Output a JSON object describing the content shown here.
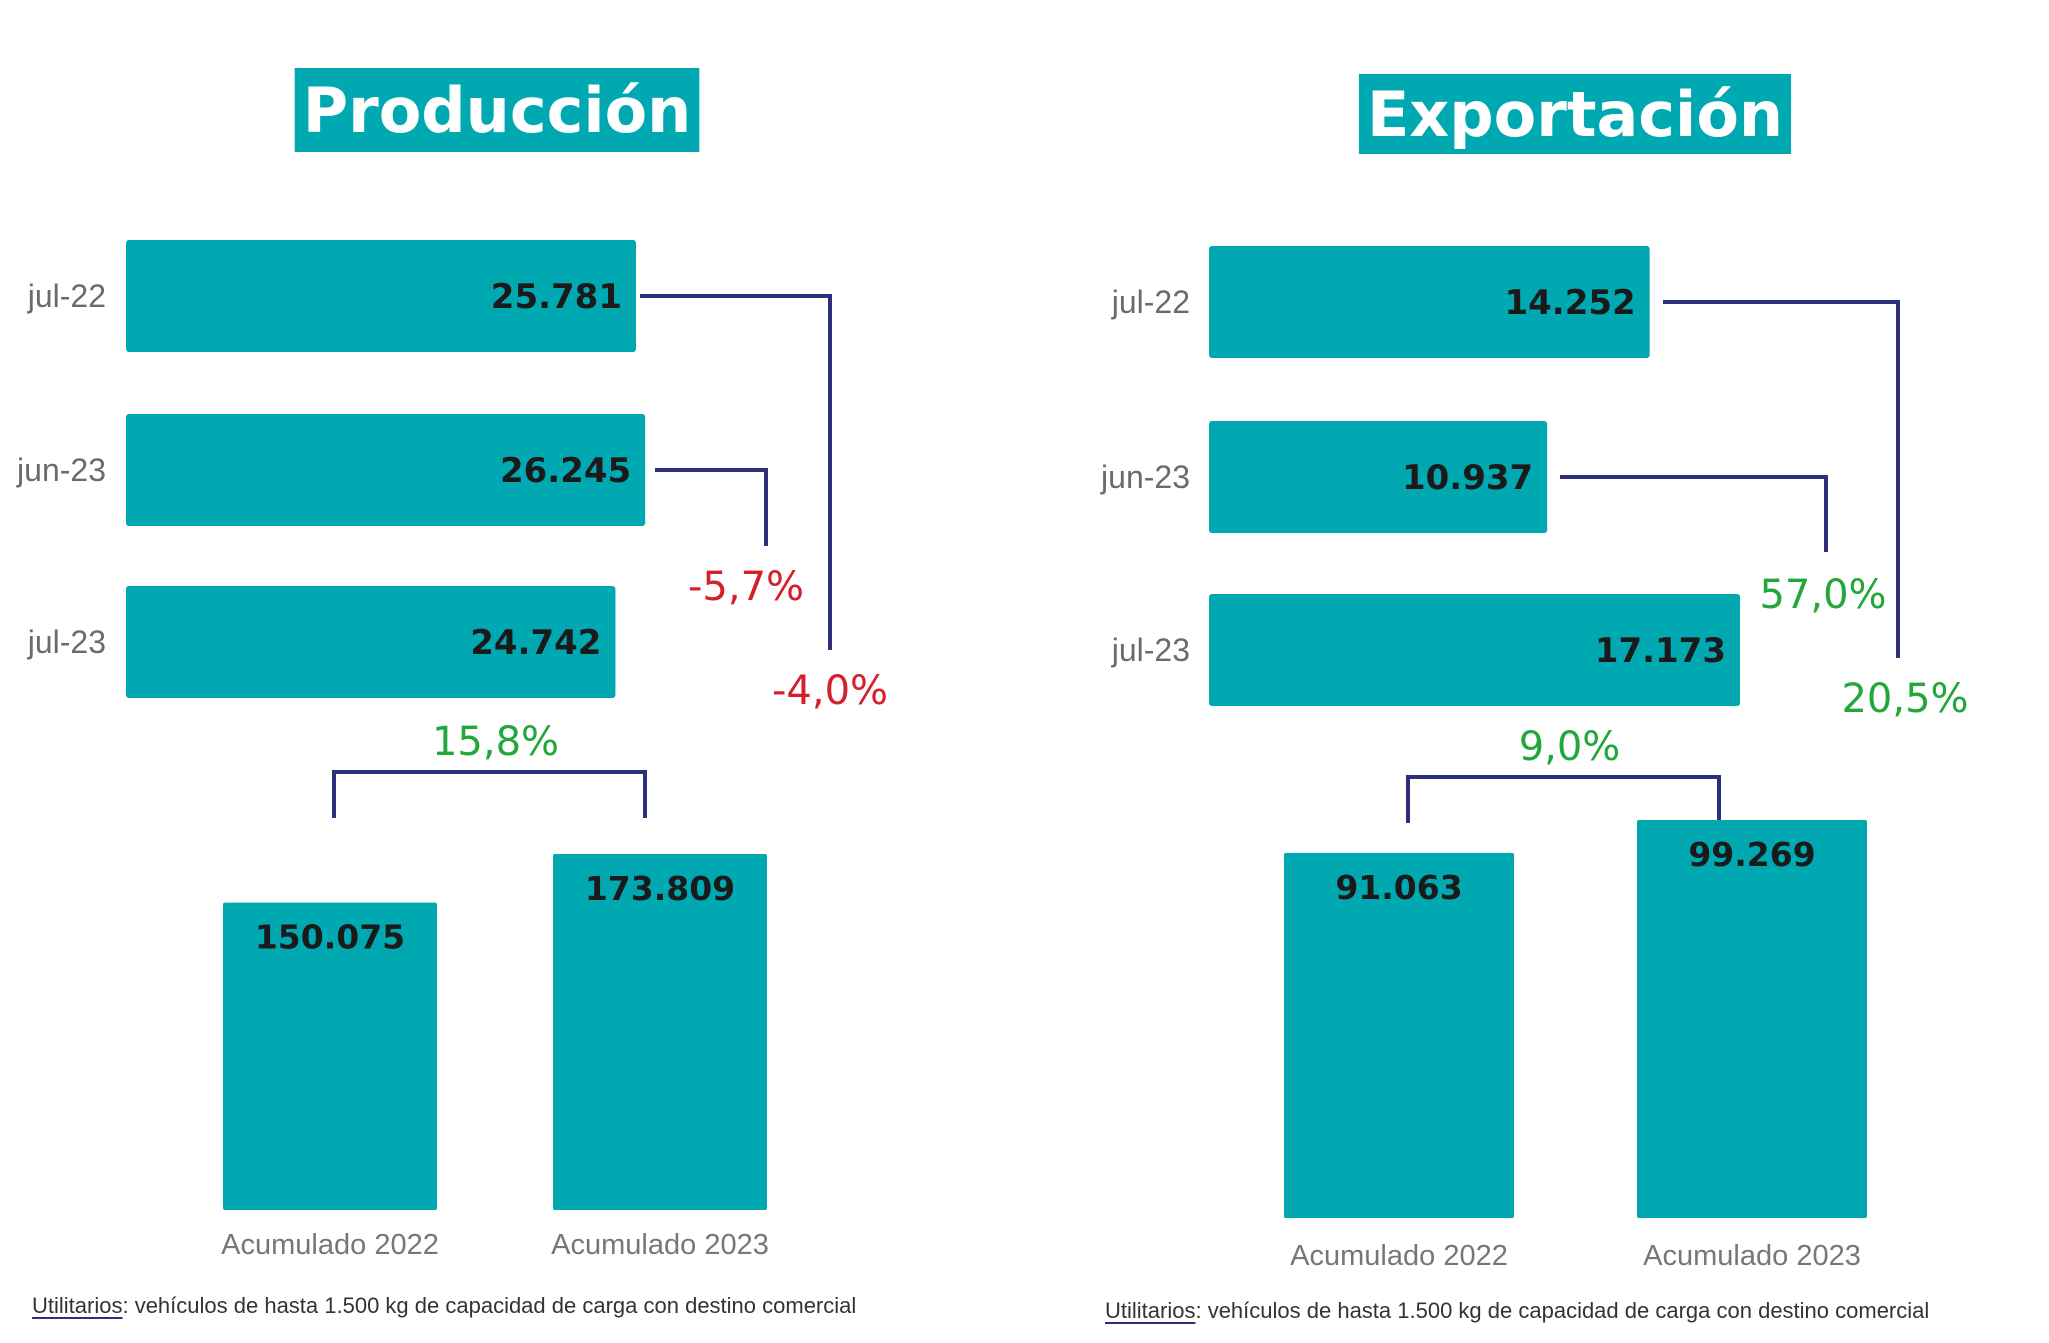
{
  "colors": {
    "bar": "#00a9b2",
    "connector": "#2d2f7a",
    "negative": "#d4202a",
    "positive": "#22a83a",
    "title_bg": "#00a9b2"
  },
  "chart_data": [
    {
      "type": "bar",
      "title": "Producción",
      "monthly": {
        "orientation": "horizontal",
        "categories": [
          "jul-22",
          "jun-23",
          "jul-23"
        ],
        "values": [
          25781,
          26245,
          24742
        ],
        "value_labels": [
          "25.781",
          "26.245",
          "24.742"
        ]
      },
      "changes": {
        "vs_previous_month": "-5,7%",
        "vs_same_month_last_year": "-4,0%",
        "accumulated": "15,8%"
      },
      "accumulated": {
        "orientation": "vertical",
        "categories": [
          "Acumulado 2022",
          "Acumulado 2023"
        ],
        "values": [
          150075,
          173809
        ],
        "value_labels": [
          "150.075",
          "173.809"
        ]
      },
      "footnote_term": "Utilitarios",
      "footnote_text": ": vehículos de hasta 1.500 kg de capacidad de carga con destino comercial"
    },
    {
      "type": "bar",
      "title": "Exportación",
      "monthly": {
        "orientation": "horizontal",
        "categories": [
          "jul-22",
          "jun-23",
          "jul-23"
        ],
        "values": [
          14252,
          10937,
          17173
        ],
        "value_labels": [
          "14.252",
          "10.937",
          "17.173"
        ]
      },
      "changes": {
        "vs_previous_month": "57,0%",
        "vs_same_month_last_year": "20,5%",
        "accumulated": "9,0%"
      },
      "accumulated": {
        "orientation": "vertical",
        "categories": [
          "Acumulado 2022",
          "Acumulado 2023"
        ],
        "values": [
          91063,
          99269
        ],
        "value_labels": [
          "91.063",
          "99.269"
        ]
      },
      "footnote_term": "Utilitarios",
      "footnote_text": ": vehículos de hasta 1.500 kg de capacidad de carga con destino comercial"
    }
  ]
}
